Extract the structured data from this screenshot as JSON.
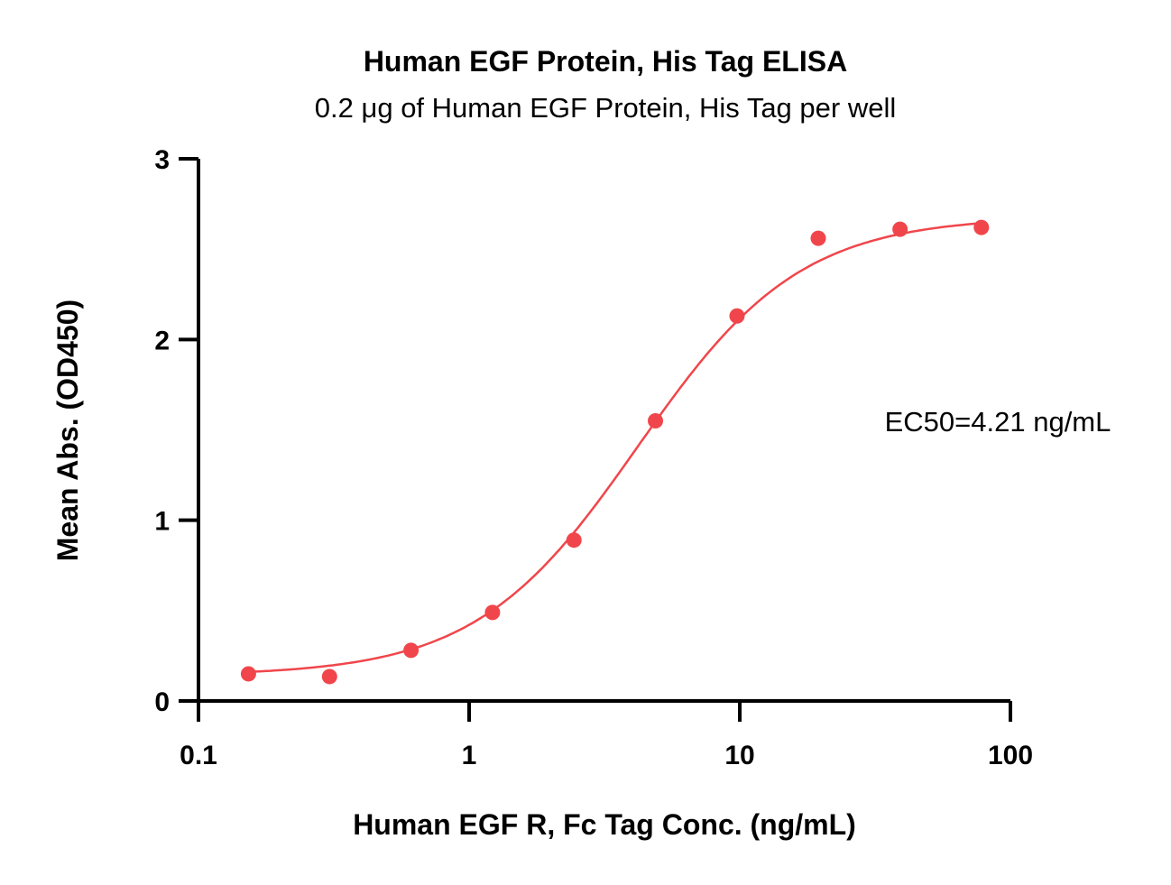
{
  "chart_data": {
    "type": "scatter",
    "title": "Human EGF Protein, His Tag ELISA",
    "subtitle": "0.2 μg of Human EGF Protein, His Tag per well",
    "xlabel": "Human EGF R, Fc Tag Conc. (ng/mL)",
    "ylabel": "Mean Abs. (OD450)",
    "xscale": "log",
    "xlim": [
      0.1,
      100
    ],
    "ylim": [
      0,
      3
    ],
    "x_ticks": [
      "0.1",
      "1",
      "10",
      "100"
    ],
    "x_tick_values": [
      0.1,
      1,
      10,
      100
    ],
    "y_ticks": [
      "0",
      "1",
      "2",
      "3"
    ],
    "y_tick_values": [
      0,
      1,
      2,
      3
    ],
    "grid": false,
    "annotation": "EC50=4.21 ng/mL",
    "colors": {
      "series": "#f0464b",
      "axis": "#000000"
    },
    "series": [
      {
        "points": [
          {
            "x": 0.153,
            "y": 0.15
          },
          {
            "x": 0.305,
            "y": 0.135
          },
          {
            "x": 0.61,
            "y": 0.28
          },
          {
            "x": 1.22,
            "y": 0.49
          },
          {
            "x": 2.44,
            "y": 0.89
          },
          {
            "x": 4.88,
            "y": 1.55
          },
          {
            "x": 9.77,
            "y": 2.13
          },
          {
            "x": 19.5,
            "y": 2.56
          },
          {
            "x": 39.1,
            "y": 2.61
          },
          {
            "x": 78.1,
            "y": 2.62
          }
        ],
        "fit": {
          "model": "4PL",
          "bottom": 0.14,
          "top": 2.68,
          "ec50": 4.21,
          "hill": 1.45
        }
      }
    ]
  }
}
